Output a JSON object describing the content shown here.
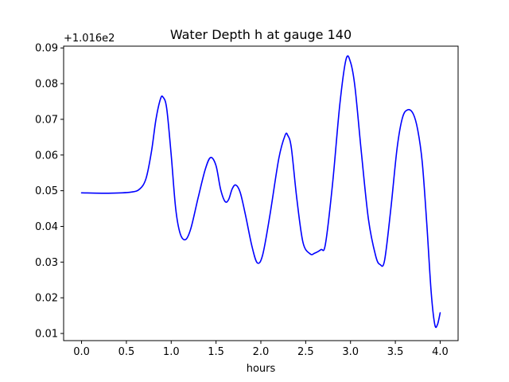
{
  "chart_data": {
    "type": "line",
    "title": "Water Depth h at gauge 140",
    "xlabel": "hours",
    "ylabel": "",
    "y_offset_label": "+1.016e2",
    "xlim": [
      -0.2,
      4.2
    ],
    "ylim": [
      0.008,
      0.0905
    ],
    "x_ticks": [
      0.0,
      0.5,
      1.0,
      1.5,
      2.0,
      2.5,
      3.0,
      3.5,
      4.0
    ],
    "x_tick_labels": [
      "0.0",
      "0.5",
      "1.0",
      "1.5",
      "2.0",
      "2.5",
      "3.0",
      "3.5",
      "4.0"
    ],
    "y_ticks": [
      0.01,
      0.02,
      0.03,
      0.04,
      0.05,
      0.06,
      0.07,
      0.08,
      0.09
    ],
    "y_tick_labels": [
      "0.01",
      "0.02",
      "0.03",
      "0.04",
      "0.05",
      "0.06",
      "0.07",
      "0.08",
      "0.09"
    ],
    "grid": false,
    "series": [
      {
        "color": "#0000ff",
        "x": [
          0.0,
          0.3,
          0.55,
          0.65,
          0.72,
          0.78,
          0.83,
          0.88,
          0.91,
          0.95,
          1.0,
          1.05,
          1.1,
          1.16,
          1.22,
          1.3,
          1.38,
          1.44,
          1.5,
          1.55,
          1.6,
          1.64,
          1.68,
          1.72,
          1.77,
          1.83,
          1.9,
          1.96,
          2.02,
          2.1,
          2.2,
          2.27,
          2.3,
          2.34,
          2.4,
          2.47,
          2.55,
          2.6,
          2.67,
          2.72,
          2.8,
          2.88,
          2.95,
          3.0,
          3.05,
          3.12,
          3.2,
          3.28,
          3.33,
          3.38,
          3.45,
          3.52,
          3.58,
          3.64,
          3.7,
          3.75,
          3.8,
          3.85,
          3.9,
          3.94,
          3.97,
          4.0
        ],
        "y": [
          0.0494,
          0.0493,
          0.0496,
          0.0505,
          0.0535,
          0.061,
          0.07,
          0.0757,
          0.0762,
          0.073,
          0.06,
          0.045,
          0.038,
          0.0363,
          0.0395,
          0.048,
          0.056,
          0.0593,
          0.057,
          0.0505,
          0.047,
          0.0475,
          0.0505,
          0.0516,
          0.0495,
          0.043,
          0.0345,
          0.0298,
          0.032,
          0.043,
          0.059,
          0.0655,
          0.0655,
          0.062,
          0.048,
          0.0355,
          0.0323,
          0.0325,
          0.0335,
          0.035,
          0.052,
          0.074,
          0.0868,
          0.086,
          0.079,
          0.061,
          0.042,
          0.0318,
          0.0293,
          0.0305,
          0.045,
          0.062,
          0.0705,
          0.0727,
          0.0715,
          0.067,
          0.058,
          0.041,
          0.0215,
          0.0125,
          0.0125,
          0.0158
        ]
      }
    ]
  }
}
